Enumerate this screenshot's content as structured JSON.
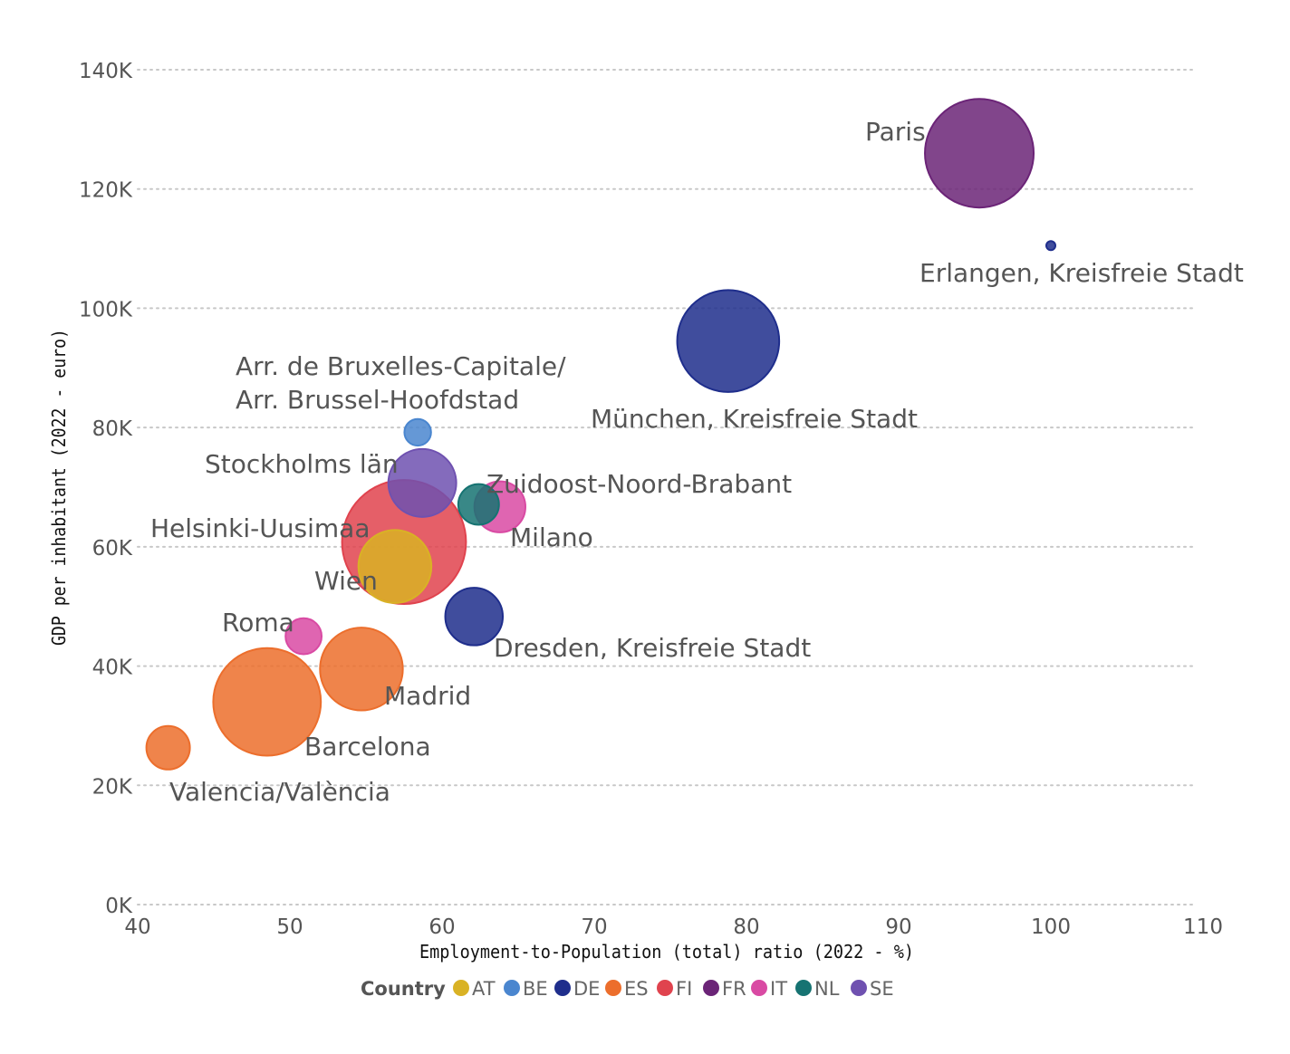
{
  "chart_data": {
    "type": "scatter",
    "subtype": "bubble",
    "title": "",
    "xlabel": "Employment-to-Population (total) ratio (2022 - %)",
    "ylabel": "GDP per inhabitant (2022 - euro)",
    "xlim": [
      40,
      110
    ],
    "ylim": [
      0,
      140000
    ],
    "x_ticks": [
      40,
      50,
      60,
      70,
      80,
      90,
      100,
      110
    ],
    "x_tick_labels": [
      "40",
      "50",
      "60",
      "70",
      "80",
      "90",
      "100",
      "110"
    ],
    "y_ticks": [
      0,
      20000,
      40000,
      60000,
      80000,
      100000,
      120000,
      140000
    ],
    "y_tick_labels": [
      "0K",
      "20K",
      "40K",
      "60K",
      "80K",
      "100K",
      "120K",
      "140K"
    ],
    "grid": "horizontal dotted",
    "legend": {
      "title": "Country",
      "position": "bottom",
      "entries": [
        {
          "code": "AT",
          "color": "#d9b225"
        },
        {
          "code": "BE",
          "color": "#4a86cf"
        },
        {
          "code": "DE",
          "color": "#1f2e8c"
        },
        {
          "code": "ES",
          "color": "#ec6e2c"
        },
        {
          "code": "FI",
          "color": "#e0434e"
        },
        {
          "code": "FR",
          "color": "#6b2477"
        },
        {
          "code": "IT",
          "color": "#d94aa3"
        },
        {
          "code": "NL",
          "color": "#167372"
        },
        {
          "code": "SE",
          "color": "#6f51b0"
        }
      ]
    },
    "points": [
      {
        "name": "Helsinki-Uusimaa",
        "country": "FI",
        "x": 57.5,
        "y": 60800,
        "size": 13000
      },
      {
        "name": "Paris",
        "country": "FR",
        "x": 95.3,
        "y": 126000,
        "size": 10000
      },
      {
        "name": "München, Kreisfreie Stadt",
        "country": "DE",
        "x": 78.8,
        "y": 94500,
        "size": 8800
      },
      {
        "name": "Barcelona",
        "country": "ES",
        "x": 48.5,
        "y": 34000,
        "size": 9800
      },
      {
        "name": "Madrid",
        "country": "ES",
        "x": 54.7,
        "y": 39500,
        "size": 5800
      },
      {
        "name": "Wien",
        "country": "AT",
        "x": 56.9,
        "y": 56700,
        "size": 4500
      },
      {
        "name": "Stockholms län",
        "country": "SE",
        "x": 58.7,
        "y": 70700,
        "size": 3900
      },
      {
        "name": "Dresden, Kreisfreie Stadt",
        "country": "DE",
        "x": 62.1,
        "y": 48300,
        "size": 2800
      },
      {
        "name": "Milano",
        "country": "IT",
        "x": 63.8,
        "y": 66700,
        "size": 2200
      },
      {
        "name": "Zuidoost-Noord-Brabant",
        "country": "NL",
        "x": 62.4,
        "y": 67100,
        "size": 1400
      },
      {
        "name": "Valencia/València",
        "country": "ES",
        "x": 42.0,
        "y": 26300,
        "size": 1600
      },
      {
        "name": "Roma",
        "country": "IT",
        "x": 50.9,
        "y": 45000,
        "size": 1100
      },
      {
        "name": "Arr. de Bruxelles-Capitale/ Arr. Brussel-Hoofdstad",
        "country": "BE",
        "x": 58.4,
        "y": 79200,
        "size": 600
      },
      {
        "name": "Erlangen, Kreisfreie Stadt",
        "country": "DE",
        "x": 100.0,
        "y": 110500,
        "size": 60
      }
    ]
  }
}
